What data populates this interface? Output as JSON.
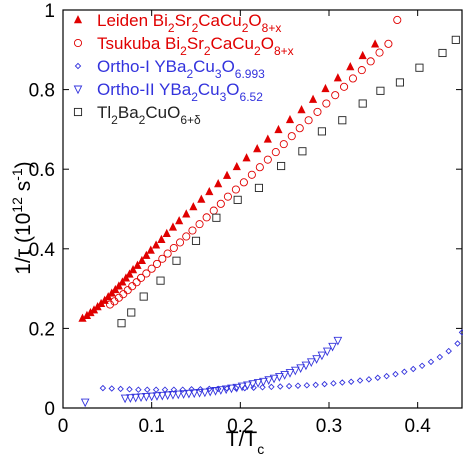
{
  "chart_data": {
    "type": "scatter",
    "xlabel": "T/T",
    "xlabel_sub": "c",
    "ylabel_prefix": "1/τ (10",
    "ylabel_sup": "12",
    "ylabel_mid": " s",
    "ylabel_sup2": "-1",
    "ylabel_suffix": ")",
    "xlim": [
      0,
      0.45
    ],
    "ylim": [
      0,
      1.0
    ],
    "xticks": [
      0,
      0.1,
      0.2,
      0.3,
      0.4
    ],
    "xtick_labels": [
      "0",
      "0.1",
      "0.2",
      "0.3",
      "0.4"
    ],
    "yticks": [
      0,
      0.2,
      0.4,
      0.6,
      0.8,
      1.0
    ],
    "ytick_labels": [
      "0",
      "0.2",
      "0.4",
      "0.6",
      "0.8",
      "1"
    ],
    "legend_position": "top-left",
    "series": [
      {
        "name": "Leiden Bi2Sr2CaCu2O8+x",
        "legend": [
          [
            "Leiden Bi",
            ""
          ],
          [
            "2",
            "sub"
          ],
          [
            "Sr",
            ""
          ],
          [
            "2",
            "sub"
          ],
          [
            "CaCu",
            ""
          ],
          [
            "2",
            "sub"
          ],
          [
            "O",
            ""
          ],
          [
            "8+x",
            "sub"
          ]
        ],
        "marker": "triangle-filled",
        "color": "#e00000",
        "x": [
          0.022,
          0.027,
          0.031,
          0.035,
          0.039,
          0.043,
          0.047,
          0.051,
          0.055,
          0.059,
          0.063,
          0.067,
          0.071,
          0.075,
          0.079,
          0.084,
          0.089,
          0.094,
          0.099,
          0.105,
          0.111,
          0.117,
          0.124,
          0.131,
          0.139,
          0.147,
          0.156,
          0.165,
          0.175,
          0.185,
          0.196,
          0.207,
          0.219,
          0.231,
          0.243,
          0.256,
          0.269,
          0.282,
          0.296,
          0.31,
          0.324,
          0.338,
          0.352
        ],
        "y": [
          0.225,
          0.232,
          0.239,
          0.246,
          0.254,
          0.262,
          0.27,
          0.279,
          0.288,
          0.297,
          0.306,
          0.316,
          0.326,
          0.336,
          0.347,
          0.358,
          0.37,
          0.383,
          0.396,
          0.409,
          0.423,
          0.438,
          0.454,
          0.47,
          0.487,
          0.505,
          0.524,
          0.543,
          0.563,
          0.584,
          0.606,
          0.628,
          0.651,
          0.675,
          0.699,
          0.724,
          0.749,
          0.775,
          0.802,
          0.829,
          0.857,
          0.885,
          0.914
        ]
      },
      {
        "name": "Tsukuba Bi2Sr2CaCu2O8+x",
        "legend": [
          [
            "Tsukuba Bi",
            ""
          ],
          [
            "2",
            "sub"
          ],
          [
            "Sr",
            ""
          ],
          [
            "2",
            "sub"
          ],
          [
            "CaCu",
            ""
          ],
          [
            "2",
            "sub"
          ],
          [
            "O",
            ""
          ],
          [
            "8+x",
            "sub"
          ]
        ],
        "marker": "circle-open",
        "color": "#e00000",
        "x": [
          0.053,
          0.058,
          0.063,
          0.068,
          0.073,
          0.078,
          0.083,
          0.088,
          0.094,
          0.1,
          0.106,
          0.112,
          0.118,
          0.125,
          0.132,
          0.139,
          0.146,
          0.154,
          0.162,
          0.17,
          0.178,
          0.186,
          0.195,
          0.204,
          0.213,
          0.222,
          0.231,
          0.24,
          0.249,
          0.258,
          0.267,
          0.277,
          0.287,
          0.297,
          0.307,
          0.317,
          0.327,
          0.337,
          0.347,
          0.357,
          0.367,
          0.377
        ],
        "y": [
          0.26,
          0.268,
          0.277,
          0.286,
          0.296,
          0.306,
          0.316,
          0.327,
          0.338,
          0.35,
          0.362,
          0.375,
          0.388,
          0.402,
          0.416,
          0.431,
          0.446,
          0.462,
          0.479,
          0.496,
          0.513,
          0.531,
          0.549,
          0.567,
          0.586,
          0.605,
          0.624,
          0.643,
          0.663,
          0.683,
          0.703,
          0.723,
          0.744,
          0.765,
          0.786,
          0.807,
          0.828,
          0.849,
          0.871,
          0.893,
          0.915,
          0.975
        ]
      },
      {
        "name": "Ortho-I YBa2Cu3O6.993",
        "legend": [
          [
            "Ortho-I YBa",
            ""
          ],
          [
            "2",
            "sub"
          ],
          [
            "Cu",
            ""
          ],
          [
            "3",
            "sub"
          ],
          [
            "O",
            ""
          ],
          [
            "6.993",
            "sub"
          ]
        ],
        "marker": "diamond-open",
        "color": "#3333dd",
        "x": [
          0.045,
          0.055,
          0.065,
          0.075,
          0.085,
          0.095,
          0.105,
          0.115,
          0.125,
          0.135,
          0.145,
          0.155,
          0.165,
          0.175,
          0.185,
          0.195,
          0.205,
          0.215,
          0.225,
          0.235,
          0.245,
          0.255,
          0.265,
          0.275,
          0.285,
          0.295,
          0.305,
          0.315,
          0.325,
          0.335,
          0.345,
          0.355,
          0.365,
          0.375,
          0.385,
          0.395,
          0.405,
          0.415,
          0.425,
          0.435,
          0.445,
          0.45
        ],
        "y": [
          0.05,
          0.049,
          0.048,
          0.047,
          0.046,
          0.046,
          0.046,
          0.046,
          0.046,
          0.046,
          0.047,
          0.047,
          0.048,
          0.048,
          0.049,
          0.05,
          0.05,
          0.051,
          0.052,
          0.053,
          0.054,
          0.055,
          0.056,
          0.057,
          0.058,
          0.06,
          0.062,
          0.064,
          0.066,
          0.069,
          0.072,
          0.076,
          0.08,
          0.085,
          0.091,
          0.098,
          0.106,
          0.116,
          0.128,
          0.143,
          0.162,
          0.19
        ]
      },
      {
        "name": "Ortho-II YBa2Cu3O6.52",
        "legend": [
          [
            "Ortho-II YBa",
            ""
          ],
          [
            "2",
            "sub"
          ],
          [
            "Cu",
            ""
          ],
          [
            "3",
            "sub"
          ],
          [
            "O",
            ""
          ],
          [
            "6.52",
            "sub"
          ]
        ],
        "marker": "triangle-down-open",
        "color": "#3333dd",
        "x": [
          0.025,
          0.07,
          0.076,
          0.082,
          0.088,
          0.094,
          0.1,
          0.106,
          0.112,
          0.118,
          0.124,
          0.13,
          0.136,
          0.142,
          0.148,
          0.154,
          0.16,
          0.166,
          0.172,
          0.178,
          0.184,
          0.19,
          0.196,
          0.202,
          0.208,
          0.214,
          0.22,
          0.226,
          0.232,
          0.238,
          0.244,
          0.25,
          0.256,
          0.262,
          0.268,
          0.274,
          0.28,
          0.286,
          0.292,
          0.298,
          0.304,
          0.31
        ],
        "y": [
          0.015,
          0.025,
          0.026,
          0.027,
          0.028,
          0.029,
          0.03,
          0.031,
          0.032,
          0.033,
          0.034,
          0.035,
          0.036,
          0.037,
          0.038,
          0.039,
          0.04,
          0.042,
          0.044,
          0.046,
          0.048,
          0.05,
          0.052,
          0.055,
          0.058,
          0.061,
          0.064,
          0.067,
          0.071,
          0.075,
          0.079,
          0.084,
          0.089,
          0.095,
          0.101,
          0.108,
          0.116,
          0.124,
          0.133,
          0.143,
          0.155,
          0.17
        ]
      },
      {
        "name": "Tl2Ba2CuO6+δ",
        "legend": [
          [
            "Tl",
            ""
          ],
          [
            "2",
            "sub"
          ],
          [
            "Ba",
            ""
          ],
          [
            "2",
            "sub"
          ],
          [
            "CuO",
            ""
          ],
          [
            "6+δ",
            "sub"
          ]
        ],
        "marker": "square-open",
        "color": "#222222",
        "x": [
          0.066,
          0.077,
          0.091,
          0.11,
          0.128,
          0.15,
          0.173,
          0.197,
          0.221,
          0.246,
          0.27,
          0.292,
          0.315,
          0.338,
          0.358,
          0.38,
          0.402,
          0.428,
          0.443
        ],
        "y": [
          0.213,
          0.24,
          0.28,
          0.32,
          0.37,
          0.42,
          0.478,
          0.523,
          0.553,
          0.608,
          0.645,
          0.695,
          0.723,
          0.765,
          0.797,
          0.818,
          0.855,
          0.892,
          0.925
        ]
      }
    ]
  }
}
